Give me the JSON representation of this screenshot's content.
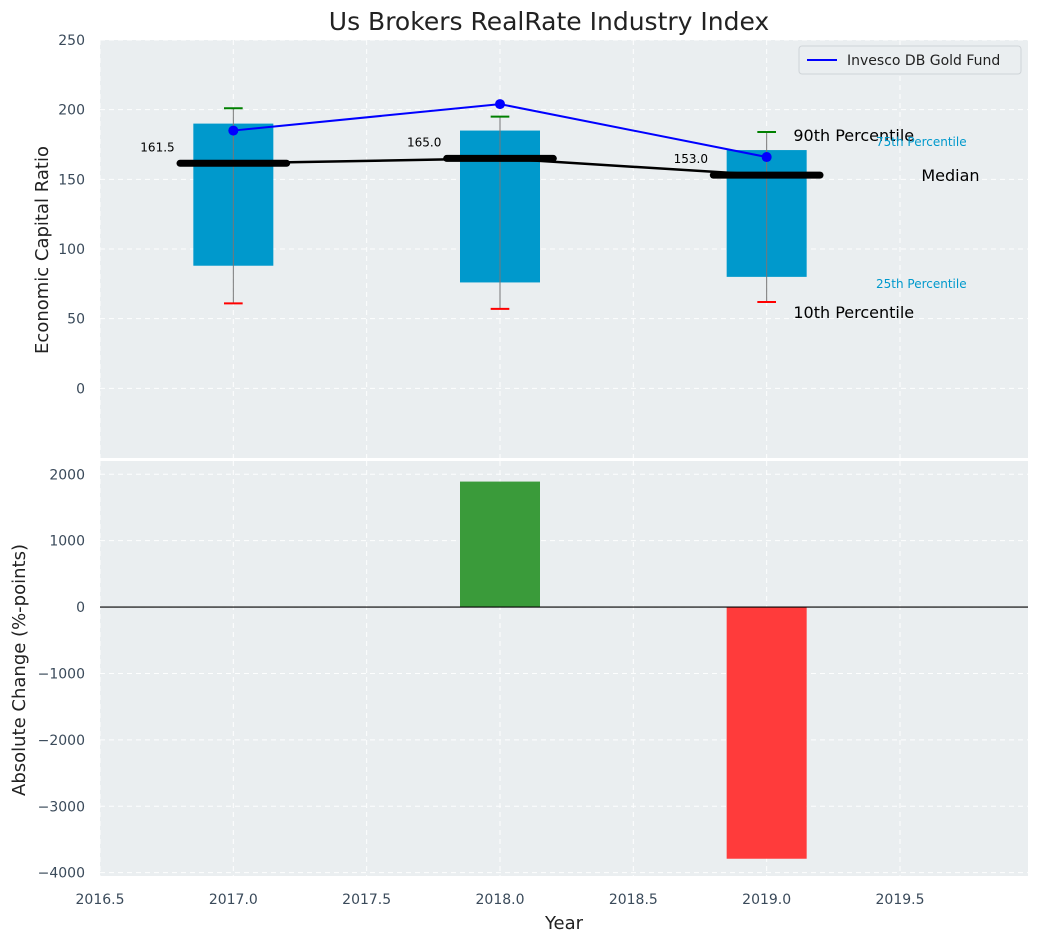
{
  "chart_data": [
    {
      "type": "bar",
      "title": "Us Brokers RealRate Industry Index",
      "ylabel": "Economic Capital Ratio",
      "ylim": [
        -50,
        250
      ],
      "yticks": [
        "0",
        "50",
        "100",
        "150",
        "200",
        "250"
      ],
      "grid": true,
      "legend_position": "top-right",
      "x": [
        2017.0,
        2018.0,
        2019.0
      ],
      "percentiles": {
        "p10": [
          61,
          57,
          62
        ],
        "p25": [
          88,
          76,
          80
        ],
        "median": [
          161.5,
          165.0,
          153.0
        ],
        "p75": [
          190,
          185,
          171
        ],
        "p90": [
          201,
          195,
          184
        ]
      },
      "median_labels": [
        "161.5",
        "165.0",
        "153.0"
      ],
      "series": [
        {
          "name": "Invesco DB Gold Fund",
          "values": [
            185,
            204,
            166
          ],
          "color": "#0000ff"
        }
      ],
      "annotations": {
        "p90": "90th Percentile",
        "p75": "75th Percentile",
        "median": "Median",
        "p25": "25th Percentile",
        "p10": "10th Percentile"
      },
      "colors": {
        "box": "#0099cc",
        "median": "#000000",
        "p90_cap": "#008000",
        "p10_cap": "#ff0000",
        "annotation_small": "#0099cc"
      }
    },
    {
      "type": "bar",
      "xlabel": "Year",
      "ylabel": "Absolute Change (%-points)",
      "xlim": [
        2016.5,
        2019.98
      ],
      "ylim": [
        -4050,
        2200
      ],
      "xticks": [
        "2016.5",
        "2017.0",
        "2017.5",
        "2018.0",
        "2018.5",
        "2019.0",
        "2019.5"
      ],
      "yticks": [
        "−4000",
        "−3000",
        "−2000",
        "−1000",
        "0",
        "1000",
        "2000"
      ],
      "grid": true,
      "x": [
        2018.0,
        2019.0
      ],
      "values": [
        1890,
        -3790
      ],
      "colors": {
        "positive": "#3a9b3a",
        "negative": "#ff3b3b"
      }
    }
  ]
}
